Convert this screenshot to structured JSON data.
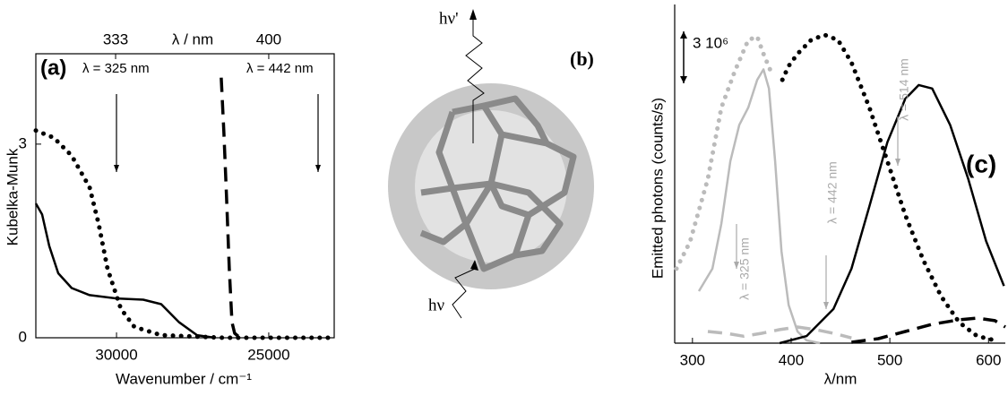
{
  "chart_data": [
    {
      "type": "line",
      "xlabel": "Wavenumber / cm⁻¹",
      "ylabel": "Kubelka-Munk",
      "x2label": "λ / nm",
      "xlim": [
        32650,
        22850
      ],
      "xticks": [
        30000,
        25000
      ],
      "x2ticks": [
        333,
        400
      ],
      "ylim": [
        0,
        4.4
      ],
      "yticks": [
        0,
        3
      ],
      "annotations": [
        "(a)",
        "λ = 325 nm",
        "λ = 442 nm"
      ],
      "series": [
        {
          "color": "#000000",
          "style": "solid",
          "x": [
            32650,
            32444,
            32209,
            31915,
            31474,
            30885,
            30003,
            29121,
            28533,
            27944,
            27356,
            26768
          ],
          "values": [
            2.08,
            1.91,
            1.42,
            1.0,
            0.77,
            0.66,
            0.61,
            0.59,
            0.52,
            0.24,
            0.04,
            0
          ]
        },
        {
          "color": "#000000",
          "style": "dotted",
          "x": [
            32650,
            32062,
            31474,
            30885,
            30591,
            30297,
            29856,
            29415,
            28533,
            26474,
            22945
          ],
          "values": [
            3.21,
            3.1,
            2.82,
            2.33,
            1.77,
            1.07,
            0.45,
            0.17,
            0.04,
            0,
            0
          ]
        },
        {
          "color": "#000000",
          "style": "dashed",
          "x": [
            26562,
            26474,
            26386,
            26297,
            26209,
            26121,
            25944
          ],
          "values": [
            4.03,
            3.17,
            2.19,
            1.07,
            0.24,
            0.07,
            0
          ]
        }
      ]
    },
    {
      "type": "line",
      "xlabel": "λ/nm",
      "ylabel": "Emitted photons (counts/s)",
      "xlim": [
        282,
        617
      ],
      "xticks": [
        300,
        400,
        500,
        600
      ],
      "ylim": [
        0,
        18000000
      ],
      "scale_bar": {
        "value": 3000000,
        "label": "3 10⁶"
      },
      "annotations": [
        "(c)",
        "λ = 325 nm",
        "λ = 442 nm",
        "λ = 514 nm"
      ],
      "series": [
        {
          "color": "#bbbbbb",
          "style": "dotted",
          "x": [
            283.8,
            297.5,
            315.6,
            329.3,
            342.9,
            356.5,
            365.6,
            372,
            379.3
          ],
          "values": [
            4300000,
            5850000,
            9480000,
            13600000,
            15700000,
            17500000,
            17700000,
            16700000,
            15700000
          ]
        },
        {
          "color": "#bbbbbb",
          "style": "solid",
          "x": [
            306.5,
            320.2,
            329.3,
            338.4,
            347.5,
            356.5,
            365.6,
            372,
            377.5,
            383.8,
            390.2,
            397.5,
            406.5,
            415.6,
            429.3
          ],
          "values": [
            3000000,
            4300000,
            6900000,
            10500000,
            12600000,
            13600000,
            15200000,
            15800000,
            14700000,
            10500000,
            5300000,
            2200000,
            670000,
            160000,
            0
          ]
        },
        {
          "color": "#bbbbbb",
          "style": "dashed",
          "x": [
            315.6,
            333.8,
            352,
            370.2,
            388.4,
            406.5,
            424.7,
            442.9,
            461.1
          ],
          "values": [
            670000,
            570000,
            400000,
            570000,
            780000,
            930000,
            780000,
            570000,
            300000
          ]
        },
        {
          "color": "#000000",
          "style": "dotted",
          "x": [
            391.1,
            397.5,
            406.5,
            420.2,
            433.8,
            447.5,
            461.1,
            479.3,
            497.5,
            515.6,
            533.8,
            552,
            570.2,
            588.4,
            606.5
          ],
          "values": [
            15200000,
            16000000,
            16700000,
            17500000,
            17800000,
            17500000,
            16200000,
            13600000,
            10500000,
            7400000,
            4800000,
            2700000,
            1200000,
            410000,
            160000
          ]
        },
        {
          "color": "#000000",
          "style": "solid",
          "x": [
            388.4,
            415.6,
            442.9,
            461.1,
            479.3,
            497.5,
            515.6,
            529.3,
            542.9,
            561.1,
            579.3,
            597.5,
            615.6
          ],
          "values": [
            0,
            410000,
            1970000,
            4300000,
            7900000,
            11600000,
            14100000,
            14900000,
            14700000,
            12600000,
            9500000,
            5900000,
            3300000
          ]
        },
        {
          "color": "#000000",
          "style": "dashed",
          "x": [
            461.1,
            488.4,
            515.6,
            542.9,
            570.2,
            588.4,
            606.5,
            617
          ],
          "values": [
            50000,
            260000,
            670000,
            1090000,
            1350000,
            1450000,
            1300000,
            930000
          ]
        }
      ]
    }
  ],
  "panel_b": {
    "label": "(b)",
    "annotations": [
      "hν'",
      "hν"
    ]
  }
}
